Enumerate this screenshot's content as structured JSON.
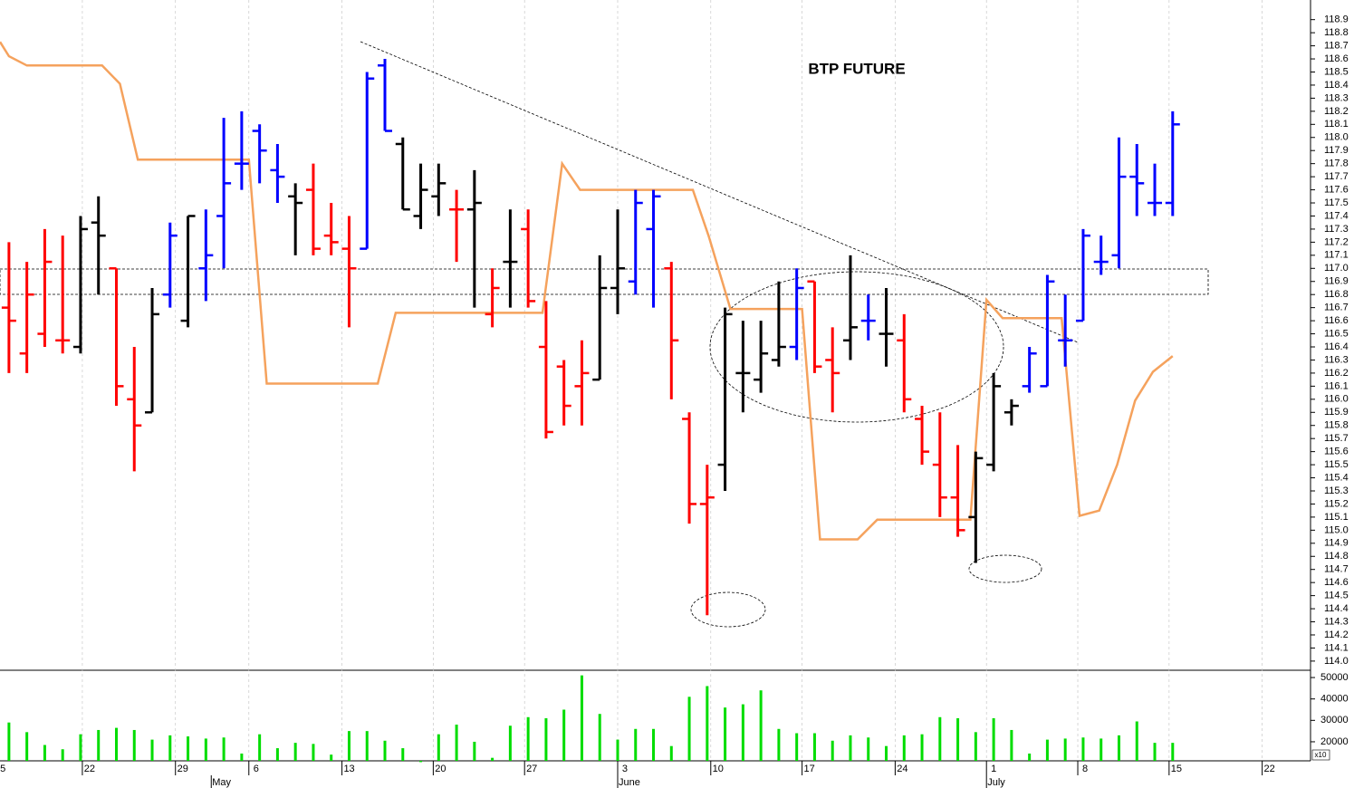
{
  "chart_data": [
    {
      "type": "ohlc",
      "title": "BTP FUTURE",
      "x": [
        0,
        1,
        2,
        3,
        4,
        5,
        6,
        7,
        8,
        9,
        10,
        11,
        12,
        13,
        14,
        15,
        16,
        17,
        18,
        19,
        20,
        21,
        22,
        23,
        24,
        25,
        26,
        27,
        28,
        29,
        30,
        31,
        32,
        33,
        34,
        35,
        36,
        37,
        38,
        39,
        40,
        41,
        42,
        43,
        44,
        45,
        46,
        47,
        48,
        49,
        50,
        51,
        52,
        53,
        54,
        55,
        56,
        57,
        58,
        59,
        60,
        61,
        62,
        63,
        64,
        65
      ],
      "open": [
        116.7,
        116.35,
        116.5,
        116.45,
        116.4,
        117.35,
        117.0,
        116.0,
        115.9,
        116.8,
        116.6,
        117.0,
        117.4,
        117.8,
        118.05,
        117.75,
        117.55,
        117.6,
        117.25,
        117.15,
        117.15,
        118.55,
        117.95,
        117.4,
        117.55,
        117.45,
        117.45,
        116.65,
        117.05,
        117.3,
        116.4,
        116.25,
        116.1,
        116.15,
        116.85,
        116.9,
        117.3,
        117.0,
        115.85,
        115.2,
        115.5,
        116.2,
        116.15,
        116.3,
        116.4,
        116.9,
        116.3,
        116.45,
        116.6,
        116.5,
        116.45,
        115.85,
        115.5,
        115.25,
        115.1,
        115.5,
        115.9,
        116.1,
        116.1,
        116.45,
        116.6,
        117.05,
        117.1,
        117.7,
        117.5,
        117.5
      ],
      "high": [
        117.2,
        117.05,
        117.3,
        117.25,
        117.4,
        117.55,
        117.0,
        116.4,
        116.85,
        117.35,
        117.4,
        117.45,
        118.15,
        118.2,
        118.1,
        117.95,
        117.65,
        117.8,
        117.5,
        117.4,
        118.5,
        118.6,
        118.0,
        117.8,
        117.8,
        117.6,
        117.75,
        117.0,
        117.45,
        117.45,
        116.75,
        116.3,
        116.45,
        117.1,
        117.45,
        117.6,
        117.6,
        117.05,
        115.9,
        115.5,
        116.7,
        116.6,
        116.6,
        116.9,
        117.0,
        116.9,
        116.55,
        117.1,
        116.8,
        116.85,
        116.65,
        115.95,
        115.9,
        115.65,
        115.6,
        116.2,
        116.0,
        116.4,
        116.95,
        116.8,
        117.3,
        117.25,
        118.0,
        117.95,
        117.8,
        118.2
      ],
      "low": [
        116.2,
        116.2,
        116.4,
        116.35,
        116.35,
        116.8,
        115.95,
        115.45,
        115.9,
        116.7,
        116.55,
        116.75,
        117.0,
        117.6,
        117.65,
        117.5,
        117.1,
        117.1,
        117.1,
        116.55,
        117.15,
        118.05,
        117.45,
        117.3,
        117.4,
        117.05,
        116.7,
        116.55,
        116.7,
        116.7,
        115.7,
        115.8,
        115.8,
        116.15,
        116.65,
        116.8,
        116.7,
        116.0,
        115.05,
        114.35,
        115.3,
        115.9,
        116.05,
        116.25,
        116.3,
        116.2,
        115.9,
        116.3,
        116.45,
        116.25,
        115.9,
        115.5,
        115.1,
        114.95,
        114.75,
        115.45,
        115.8,
        116.05,
        116.1,
        116.25,
        116.6,
        116.95,
        117.0,
        117.4,
        117.4,
        117.4
      ],
      "close": [
        116.6,
        116.8,
        117.05,
        116.45,
        117.3,
        117.25,
        116.1,
        115.8,
        116.65,
        117.25,
        117.4,
        117.1,
        117.65,
        117.8,
        117.9,
        117.7,
        117.5,
        117.15,
        117.2,
        117.0,
        118.45,
        118.05,
        117.45,
        117.6,
        117.65,
        117.45,
        117.5,
        116.85,
        117.05,
        116.75,
        115.75,
        115.95,
        116.2,
        116.85,
        117.0,
        117.5,
        117.55,
        116.45,
        115.2,
        115.25,
        116.65,
        116.2,
        116.35,
        116.4,
        116.85,
        116.25,
        116.2,
        116.55,
        116.6,
        116.5,
        116.0,
        115.6,
        115.25,
        115.0,
        115.55,
        116.1,
        115.95,
        116.35,
        116.9,
        116.45,
        117.25,
        117.05,
        117.7,
        117.65,
        117.5,
        118.1
      ],
      "colors": [
        "#ff0000",
        "#ff0000",
        "#ff0000",
        "#ff0000",
        "#000000",
        "#000000",
        "#ff0000",
        "#ff0000",
        "#000000",
        "#0000ff",
        "#000000",
        "#0000ff",
        "#0000ff",
        "#0000ff",
        "#0000ff",
        "#0000ff",
        "#000000",
        "#ff0000",
        "#ff0000",
        "#ff0000",
        "#0000ff",
        "#0000ff",
        "#000000",
        "#000000",
        "#000000",
        "#ff0000",
        "#000000",
        "#ff0000",
        "#000000",
        "#ff0000",
        "#ff0000",
        "#ff0000",
        "#ff0000",
        "#000000",
        "#000000",
        "#0000ff",
        "#0000ff",
        "#ff0000",
        "#ff0000",
        "#ff0000",
        "#000000",
        "#000000",
        "#000000",
        "#000000",
        "#0000ff",
        "#ff0000",
        "#ff0000",
        "#000000",
        "#0000ff",
        "#000000",
        "#ff0000",
        "#ff0000",
        "#ff0000",
        "#ff0000",
        "#000000",
        "#000000",
        "#000000",
        "#0000ff",
        "#0000ff",
        "#0000ff",
        "#0000ff",
        "#0000ff",
        "#0000ff",
        "#0000ff",
        "#0000ff",
        "#0000ff"
      ],
      "lines": [
        {
          "color": "#f5a25d",
          "x": [
            -0.5,
            0,
            1.0,
            5.2,
            6.2,
            7.2,
            13.4,
            14.4,
            20.6,
            21.6,
            29.8,
            30.9,
            31.9,
            38.2,
            39.1,
            40.3,
            44.3,
            45.3,
            47.4,
            48.5,
            53.7,
            54.6,
            55.5,
            58.8,
            59.8,
            60.9,
            61.9,
            62.9,
            63.9,
            65.0
          ],
          "values": [
            118.73,
            118.62,
            118.55,
            118.55,
            118.41,
            117.83,
            117.83,
            116.12,
            116.12,
            116.66,
            116.66,
            117.8,
            117.6,
            117.6,
            117.24,
            116.69,
            116.69,
            114.93,
            114.93,
            115.08,
            115.08,
            116.76,
            116.62,
            116.62,
            115.11,
            115.15,
            115.5,
            115.99,
            116.21,
            116.33
          ]
        }
      ],
      "xlim": [
        -0.5,
        72.7
      ],
      "xticks": [
        {
          "value": -0.9,
          "label": "15"
        },
        {
          "value": 4.1,
          "label": "22"
        },
        {
          "value": 9.3,
          "label": "29"
        },
        {
          "value": 13.4,
          "label": "6"
        },
        {
          "value": 18.6,
          "label": "13"
        },
        {
          "value": 23.7,
          "label": "20"
        },
        {
          "value": 28.8,
          "label": "27"
        },
        {
          "value": 34.0,
          "label": "3"
        },
        {
          "value": 39.2,
          "label": "10"
        },
        {
          "value": 44.3,
          "label": "17"
        },
        {
          "value": 49.5,
          "label": "24"
        },
        {
          "value": 54.6,
          "label": "1"
        },
        {
          "value": 59.7,
          "label": "8"
        },
        {
          "value": 64.8,
          "label": "15"
        },
        {
          "value": 70.0,
          "label": "22"
        }
      ],
      "month_ticks": [
        {
          "value": 11.3,
          "label": "May"
        },
        {
          "value": 34.0,
          "label": "June"
        },
        {
          "value": 54.6,
          "label": "July"
        }
      ],
      "ylim": [
        113.93,
        119.05
      ],
      "yticks": [
        {
          "value": 114,
          "label": "114.0"
        },
        114.1,
        114.2,
        114.3,
        114.4,
        114.5,
        114.6,
        114.7,
        114.8,
        114.9,
        {
          "value": 115,
          "label": "115.0"
        },
        115.1,
        115.2,
        115.3,
        115.4,
        115.5,
        115.6,
        115.7,
        115.8,
        115.9,
        {
          "value": 116,
          "label": "116.0"
        },
        116.1,
        116.2,
        116.3,
        116.4,
        116.5,
        116.6,
        116.7,
        116.8,
        116.9,
        {
          "value": 117,
          "label": "117.0"
        },
        117.1,
        117.2,
        117.3,
        117.4,
        117.5,
        117.6,
        117.7,
        117.8,
        117.9,
        {
          "value": 118,
          "label": "118.0"
        },
        118.1,
        118.2,
        118.3,
        118.4,
        118.5,
        118.6,
        118.7,
        118.8,
        118.9
      ],
      "grid": true
    },
    {
      "type": "bar",
      "color": "#00dd00",
      "unit_label": "x10",
      "values": [
        29000,
        24500,
        18500,
        16500,
        23500,
        25500,
        26500,
        25500,
        21000,
        23000,
        22500,
        21500,
        22000,
        14500,
        23500,
        17000,
        19500,
        19000,
        14000,
        25000,
        25000,
        20500,
        17000,
        10500,
        23500,
        28000,
        20000,
        12500,
        27500,
        31500,
        31000,
        35000,
        51000,
        33000,
        21000,
        26000,
        26000,
        18000,
        41000,
        46000,
        36000,
        37500,
        44000,
        26000,
        24000,
        24000,
        20500,
        23000,
        22000,
        18000,
        23000,
        23500,
        31500,
        31000,
        24500,
        31000,
        25500,
        14500,
        21000,
        21500,
        22000,
        21500,
        23000,
        29500,
        19500,
        19500
      ],
      "ylim": [
        11100,
        53400
      ],
      "yticks": [
        20000,
        30000,
        40000,
        50000
      ]
    }
  ]
}
